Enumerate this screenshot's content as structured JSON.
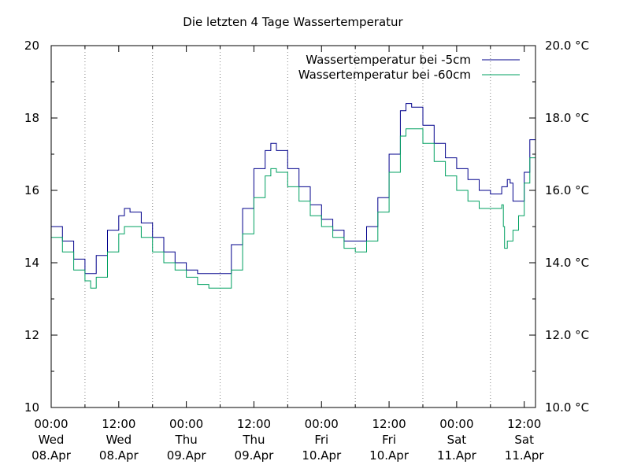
{
  "chart_data": {
    "type": "line",
    "title": "Die letzten 4 Tage Wassertemperatur",
    "xlabel": "",
    "ylabel": "",
    "xlim_hours": [
      0,
      86
    ],
    "ylim": [
      10,
      20
    ],
    "y_ticks_left": [
      "10",
      "12",
      "14",
      "16",
      "18",
      "20"
    ],
    "y_ticks_right": [
      "10.0 °C",
      "12.0 °C",
      "14.0 °C",
      "16.0 °C",
      "18.0 °C",
      "20.0 °C"
    ],
    "x_ticks": [
      {
        "hour": 0,
        "time": "00:00",
        "day": "Wed",
        "date": "08.Apr"
      },
      {
        "hour": 12,
        "time": "12:00",
        "day": "Wed",
        "date": "08.Apr"
      },
      {
        "hour": 24,
        "time": "00:00",
        "day": "Thu",
        "date": "09.Apr"
      },
      {
        "hour": 36,
        "time": "12:00",
        "day": "Thu",
        "date": "09.Apr"
      },
      {
        "hour": 48,
        "time": "00:00",
        "day": "Fri",
        "date": "10.Apr"
      },
      {
        "hour": 60,
        "time": "12:00",
        "day": "Fri",
        "date": "10.Apr"
      },
      {
        "hour": 72,
        "time": "00:00",
        "day": "Sat",
        "date": "11.Apr"
      },
      {
        "hour": 84,
        "time": "12:00",
        "day": "Sat",
        "date": "11.Apr"
      }
    ],
    "grid_hours": [
      6,
      18,
      30,
      42,
      54,
      66,
      78
    ],
    "grid": "vertical-dotted",
    "legend_position": "top-right",
    "series": [
      {
        "name": "Wassertemperatur bei -5cm",
        "color": "#00008b",
        "x": [
          0,
          2,
          4,
          6,
          8,
          10,
          12,
          13,
          14,
          16,
          18,
          20,
          22,
          24,
          26,
          28,
          30,
          32,
          34,
          36,
          38,
          39,
          40,
          42,
          44,
          46,
          48,
          50,
          52,
          54,
          56,
          58,
          60,
          62,
          63,
          64,
          66,
          68,
          70,
          72,
          74,
          76,
          78,
          79,
          80,
          81,
          81.5,
          82,
          83,
          84,
          85,
          86
        ],
        "values": [
          15.0,
          14.6,
          14.1,
          13.7,
          14.2,
          14.9,
          15.3,
          15.5,
          15.4,
          15.1,
          14.7,
          14.3,
          14.0,
          13.8,
          13.7,
          13.7,
          13.7,
          14.5,
          15.5,
          16.6,
          17.1,
          17.3,
          17.1,
          16.6,
          16.1,
          15.6,
          15.2,
          14.9,
          14.6,
          14.6,
          15.0,
          15.8,
          17.0,
          18.2,
          18.4,
          18.3,
          17.8,
          17.3,
          16.9,
          16.6,
          16.3,
          16.0,
          15.9,
          15.9,
          16.1,
          16.3,
          16.2,
          15.7,
          15.7,
          16.5,
          17.4,
          18.2
        ]
      },
      {
        "name": "Wassertemperatur bei -60cm",
        "color": "#00a060",
        "x": [
          0,
          2,
          4,
          6,
          7,
          8,
          10,
          12,
          13,
          14,
          16,
          18,
          20,
          22,
          24,
          26,
          28,
          30,
          32,
          34,
          36,
          38,
          39,
          40,
          42,
          44,
          46,
          48,
          50,
          52,
          54,
          55,
          56,
          58,
          60,
          62,
          63,
          64,
          66,
          68,
          70,
          72,
          74,
          76,
          78,
          80,
          80.3,
          80.5,
          81,
          82,
          83,
          84,
          85,
          86
        ],
        "values": [
          14.7,
          14.3,
          13.8,
          13.5,
          13.3,
          13.6,
          14.3,
          14.8,
          15.0,
          15.0,
          14.7,
          14.3,
          14.0,
          13.8,
          13.6,
          13.4,
          13.3,
          13.3,
          13.8,
          14.8,
          15.8,
          16.4,
          16.6,
          16.5,
          16.1,
          15.7,
          15.3,
          15.0,
          14.7,
          14.4,
          14.3,
          14.3,
          14.6,
          15.4,
          16.5,
          17.5,
          17.7,
          17.7,
          17.3,
          16.8,
          16.4,
          16.0,
          15.7,
          15.5,
          15.5,
          15.6,
          15.0,
          14.4,
          14.6,
          14.9,
          15.3,
          16.2,
          16.9,
          17.5
        ]
      }
    ]
  }
}
